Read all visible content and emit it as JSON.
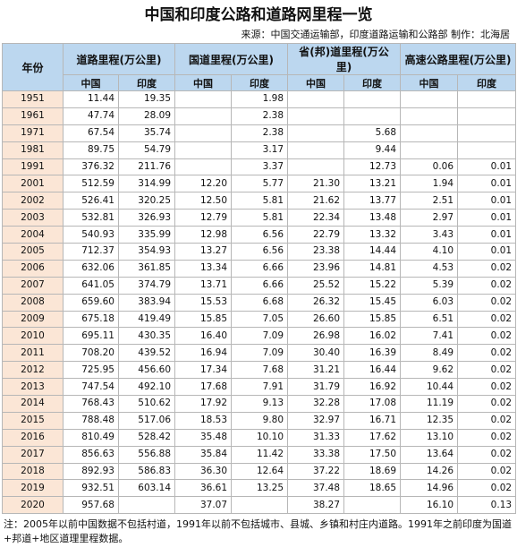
{
  "title": "中国和印度公路和道路网里程一览",
  "source": "来源：中国交通运输部，印度道路运输和公路部 制作：北海居",
  "headers": {
    "year": "年份",
    "groups": [
      "道路里程(万公里)",
      "国道里程(万公里)",
      "省(邦)道里程(万公里)",
      "高速公路里程(万公里)"
    ],
    "sub": [
      "中国",
      "印度",
      "中国",
      "印度",
      "中国",
      "印度",
      "中国",
      "印度"
    ]
  },
  "rows": [
    [
      "1951",
      "11.44",
      "19.35",
      "",
      "1.98",
      "",
      "",
      "",
      ""
    ],
    [
      "1961",
      "47.74",
      "28.09",
      "",
      "2.38",
      "",
      "",
      "",
      ""
    ],
    [
      "1971",
      "67.54",
      "35.74",
      "",
      "2.38",
      "",
      "5.68",
      "",
      ""
    ],
    [
      "1981",
      "89.75",
      "54.79",
      "",
      "3.17",
      "",
      "9.44",
      "",
      ""
    ],
    [
      "1991",
      "376.32",
      "211.76",
      "",
      "3.37",
      "",
      "12.73",
      "0.06",
      "0.01"
    ],
    [
      "2001",
      "512.59",
      "314.99",
      "12.20",
      "5.77",
      "21.30",
      "13.21",
      "1.94",
      "0.01"
    ],
    [
      "2002",
      "526.41",
      "320.25",
      "12.50",
      "5.81",
      "21.62",
      "13.77",
      "2.51",
      "0.01"
    ],
    [
      "2003",
      "532.81",
      "326.93",
      "12.79",
      "5.81",
      "22.34",
      "13.48",
      "2.97",
      "0.01"
    ],
    [
      "2004",
      "540.93",
      "335.99",
      "12.98",
      "6.56",
      "22.79",
      "13.32",
      "3.43",
      "0.01"
    ],
    [
      "2005",
      "712.37",
      "354.93",
      "13.27",
      "6.56",
      "23.38",
      "14.44",
      "4.10",
      "0.01"
    ],
    [
      "2006",
      "632.06",
      "361.85",
      "13.34",
      "6.66",
      "23.96",
      "14.81",
      "4.53",
      "0.02"
    ],
    [
      "2007",
      "641.05",
      "374.79",
      "13.71",
      "6.66",
      "25.52",
      "15.22",
      "5.39",
      "0.02"
    ],
    [
      "2008",
      "659.60",
      "383.94",
      "15.53",
      "6.68",
      "26.32",
      "15.45",
      "6.03",
      "0.02"
    ],
    [
      "2009",
      "675.18",
      "419.49",
      "15.85",
      "7.05",
      "26.60",
      "15.85",
      "6.51",
      "0.02"
    ],
    [
      "2010",
      "695.11",
      "430.35",
      "16.40",
      "7.09",
      "26.98",
      "16.02",
      "7.41",
      "0.02"
    ],
    [
      "2011",
      "708.20",
      "439.52",
      "16.94",
      "7.09",
      "30.40",
      "16.39",
      "8.49",
      "0.02"
    ],
    [
      "2012",
      "725.95",
      "456.60",
      "17.34",
      "7.68",
      "31.21",
      "16.44",
      "9.62",
      "0.02"
    ],
    [
      "2013",
      "747.54",
      "492.10",
      "17.68",
      "7.91",
      "31.79",
      "16.92",
      "10.44",
      "0.02"
    ],
    [
      "2014",
      "768.43",
      "510.62",
      "17.92",
      "9.13",
      "32.28",
      "17.08",
      "11.19",
      "0.02"
    ],
    [
      "2015",
      "788.48",
      "517.06",
      "18.53",
      "9.80",
      "32.97",
      "16.71",
      "12.35",
      "0.02"
    ],
    [
      "2016",
      "810.49",
      "528.42",
      "35.48",
      "10.10",
      "31.33",
      "17.62",
      "13.10",
      "0.02"
    ],
    [
      "2017",
      "856.63",
      "556.88",
      "35.84",
      "11.42",
      "33.38",
      "17.50",
      "13.64",
      "0.02"
    ],
    [
      "2018",
      "892.93",
      "586.83",
      "36.30",
      "12.64",
      "37.22",
      "18.69",
      "14.26",
      "0.02"
    ],
    [
      "2019",
      "932.51",
      "603.14",
      "36.61",
      "13.25",
      "37.48",
      "18.65",
      "14.96",
      "0.02"
    ],
    [
      "2020",
      "957.68",
      "",
      "37.07",
      "",
      "38.27",
      "",
      "16.10",
      "0.13"
    ]
  ],
  "note": "注：2005年以前中国数据不包括村道，1991年以前不包括城市、县城、乡镇和村庄内道路。1991年之前印度为国道+邦道+地区道理里程数据。",
  "colors": {
    "header_bg": "#bcd7ef",
    "year_bg": "#fbe6d6",
    "border": "#b7b7b7"
  }
}
